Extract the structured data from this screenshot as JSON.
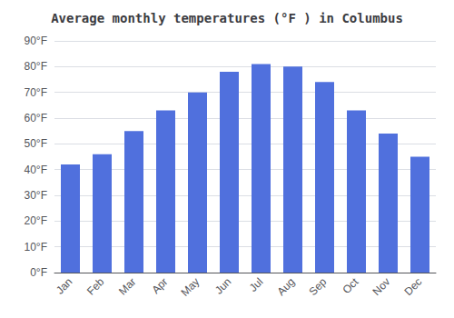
{
  "chart_data": {
    "type": "bar",
    "title": "Average monthly temperatures (°F ) in Columbus",
    "categories": [
      "Jan",
      "Feb",
      "Mar",
      "Apr",
      "May",
      "Jun",
      "Jul",
      "Aug",
      "Sep",
      "Oct",
      "Nov",
      "Dec"
    ],
    "values": [
      42,
      46,
      55,
      63,
      70,
      78,
      81,
      80,
      74,
      63,
      54,
      45
    ],
    "ylim": [
      0,
      90
    ],
    "yticks": [
      {
        "value": 0,
        "label": "0°F"
      },
      {
        "value": 10,
        "label": "10°F"
      },
      {
        "value": 20,
        "label": "20°F"
      },
      {
        "value": 30,
        "label": "30°F"
      },
      {
        "value": 40,
        "label": "40°F"
      },
      {
        "value": 50,
        "label": "50°F"
      },
      {
        "value": 60,
        "label": "60°F"
      },
      {
        "value": 70,
        "label": "70°F"
      },
      {
        "value": 80,
        "label": "80°F"
      },
      {
        "value": 90,
        "label": "90°F"
      }
    ],
    "grid": true
  }
}
